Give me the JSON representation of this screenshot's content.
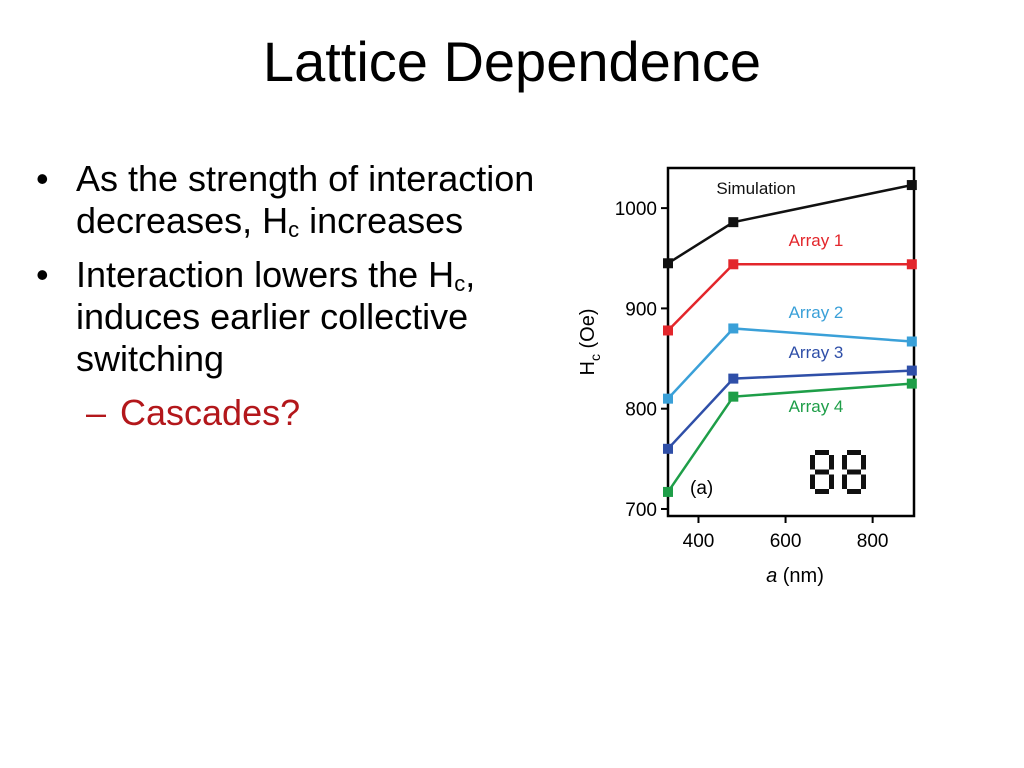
{
  "slide": {
    "title": "Lattice Dependence",
    "bullets": [
      {
        "before": "As the strength of interaction decreases, H",
        "sub": "c",
        "after": " increases"
      },
      {
        "before": "Interaction lowers the H",
        "sub": "c",
        "after": ", induces earlier collective switching"
      }
    ],
    "sub_bullet": {
      "dash": "–",
      "text": "Cascades?"
    },
    "bullet_symbol": "•"
  },
  "chart_data": {
    "type": "line",
    "panel_label": "(a)",
    "xlabel_italic": "a",
    "xlabel_rest": " (nm)",
    "ylabel_main": "H",
    "ylabel_sub": "c",
    "ylabel_rest": " (Oe)",
    "xlim": [
      330,
      895
    ],
    "ylim": [
      693,
      1040
    ],
    "xticks": [
      400,
      600,
      800
    ],
    "yticks": [
      700,
      800,
      900,
      1000
    ],
    "grid": false,
    "legend": "inline labels, right side",
    "x": [
      330,
      480,
      890
    ],
    "series": [
      {
        "name": "Simulation",
        "color": "#111111",
        "values": [
          945,
          986,
          1023
        ]
      },
      {
        "name": "Array 1",
        "color": "#e3262b",
        "values": [
          878,
          944,
          944
        ]
      },
      {
        "name": "Array 2",
        "color": "#3aa0d8",
        "values": [
          810,
          880,
          867
        ]
      },
      {
        "name": "Array 3",
        "color": "#2f4fa8",
        "values": [
          760,
          830,
          838
        ]
      },
      {
        "name": "Array 4",
        "color": "#1e9e48",
        "values": [
          717,
          812,
          825
        ]
      }
    ]
  }
}
